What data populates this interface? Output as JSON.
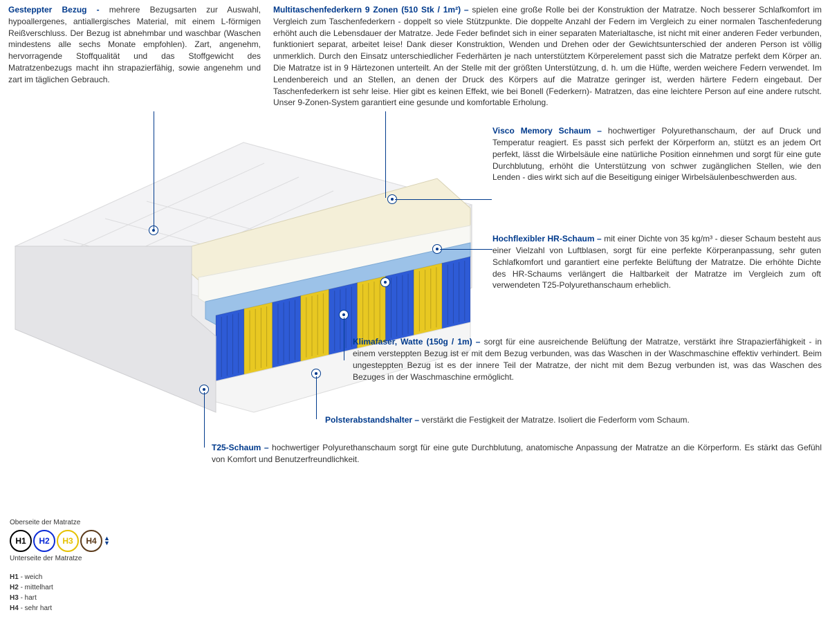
{
  "sections": {
    "bezug": {
      "title": "Gesteppter Bezug - ",
      "text": "mehrere Bezugsarten zur Auswahl, hypoallergenes, antiallergisches Material, mit einem L-förmigen Reißverschluss. Der Bezug ist abnehmbar und waschbar (Waschen mindestens alle sechs Monate empfohlen). Zart, angenehm, hervorragende Stoffqualität und das Stoffgewicht des Matratzenbezugs macht ihn strapazierfähig, sowie angenehm und zart im täglichen Gebrauch."
    },
    "federkern": {
      "title": "Multitaschenfederkern 9 Zonen (510 Stk / 1m²) – ",
      "text": "spielen eine große Rolle bei der Konstruktion der Matratze. Noch besserer Schlafkomfort im Vergleich zum Taschenfederkern - doppelt so viele Stützpunkte. Die doppelte Anzahl der Federn im Vergleich zu einer normalen Taschenfederung erhöht auch die Lebensdauer der Matratze. Jede Feder befindet sich in einer separaten Materialtasche, ist nicht mit einer anderen Feder verbunden, funktioniert separat, arbeitet leise! Dank dieser Konstruktion, Wenden und Drehen oder der Gewichtsunterschied der anderen Person ist völlig unmerklich. Durch den Einsatz unterschiedlicher Federhärten je nach unterstütztem Körperelement passt sich die Matratze perfekt dem Körper an. Die Matratze ist in 9 Härtezonen unterteilt. An der Stelle mit der größten Unterstützung, d. h. um die Hüfte, werden weichere Federn verwendet. Im Lendenbereich und an Stellen, an denen der Druck des Körpers auf die Matratze geringer ist, werden härtere Federn eingebaut. Der Taschenfederkern ist sehr leise. Hier gibt es keinen Effekt, wie bei Bonell (Federkern)- Matratzen, das eine leichtere Person auf eine andere rutscht. Unser 9-Zonen-System garantiert eine gesunde und komfortable Erholung."
    },
    "visco": {
      "title": "Visco Memory Schaum – ",
      "text": "hochwertiger Polyurethanschaum, der auf Druck und Temperatur reagiert. Es passt sich perfekt der Körperform an, stützt es an jedem Ort perfekt, lässt die Wirbelsäule eine natürliche Position einnehmen und sorgt für eine gute Durchblutung, erhöht die Unterstützung von schwer zugänglichen Stellen, wie den Lenden - dies wirkt sich auf die Beseitigung einiger Wirbelsäulenbeschwerden aus."
    },
    "hr": {
      "title": "Hochflexibler HR-Schaum – ",
      "text": "mit einer Dichte von 35 kg/m³ - dieser Schaum besteht aus einer Vielzahl von Luftblasen, sorgt für eine perfekte Körperanpassung, sehr guten Schlafkomfort und garantiert eine perfekte Belüftung der Matratze. Die erhöhte Dichte des HR-Schaums verlängert die Haltbarkeit der Matratze im Vergleich zum oft verwendeten T25-Polyurethanschaum erheblich."
    },
    "klima": {
      "title": "Klimafaser, Watte (150g / 1m) – ",
      "text": "sorgt für eine ausreichende Belüftung der Matratze, verstärkt ihre Strapazierfähigkeit - in einem versteppten Bezug ist er mit dem Bezug verbunden, was das Waschen in der Waschmaschine effektiv verhindert. Beim ungesteppten Bezug ist es der innere Teil der Matratze, der nicht mit dem Bezug verbunden ist, was das Waschen des Bezuges in der Waschmaschine ermöglicht."
    },
    "polster": {
      "title": "Polsterabstandshalter – ",
      "text": "verstärkt die Festigkeit der Matratze. Isoliert die Federform vom Schaum."
    },
    "t25": {
      "title": "T25-Schaum – ",
      "text": "hochwertiger Polyurethanschaum sorgt für eine gute Durchblutung, anatomische Anpassung der Matratze an die Körperform. Es stärkt das Gefühl von Komfort und Benutzerfreundlichkeit."
    }
  },
  "legend": {
    "top_label": "Oberseite der Matratze",
    "bottom_label": "Unterseite der Matratze",
    "circles": [
      {
        "label": "H1",
        "color": "#000000"
      },
      {
        "label": "H2",
        "color": "#0b2bd6"
      },
      {
        "label": "H3",
        "color": "#e5c100"
      },
      {
        "label": "H4",
        "color": "#5b3a1a"
      }
    ],
    "hardness": [
      {
        "code": "H1",
        "label": "weich"
      },
      {
        "code": "H2",
        "label": "mittelhart"
      },
      {
        "code": "H3",
        "label": "hart"
      },
      {
        "code": "H4",
        "label": "sehr hart"
      }
    ]
  },
  "colors": {
    "title": "#003a8c",
    "body": "#333333",
    "spring_blue": "#2e5bd6",
    "spring_yellow": "#e8c822",
    "foam_cream": "#f4efd8",
    "foam_white": "#f5f5f5",
    "base_blue": "#9cc2e8",
    "cover_grey": "#e9e9eb"
  },
  "diagram": {
    "zones": 9,
    "zone_pattern": [
      "blue",
      "yellow",
      "blue",
      "yellow",
      "blue",
      "yellow",
      "blue",
      "yellow",
      "blue"
    ]
  }
}
